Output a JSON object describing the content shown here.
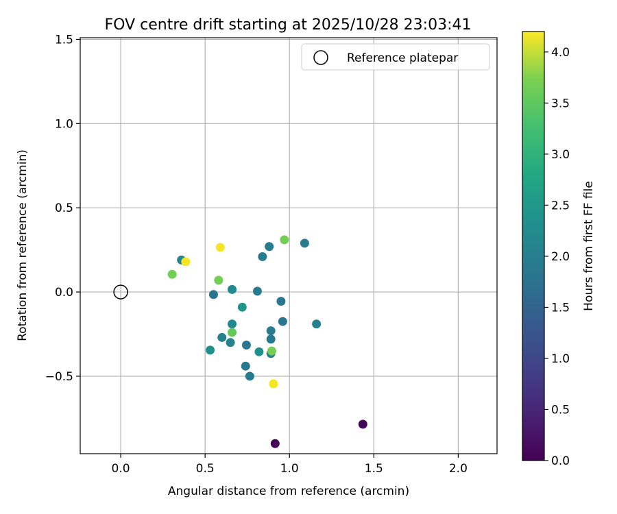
{
  "chart_data": {
    "type": "scatter",
    "title": "FOV centre drift starting at 2025/10/28 23:03:41",
    "xlabel": "Angular distance from reference (arcmin)",
    "ylabel": "Rotation from reference (arcmin)",
    "xlim": [
      -0.24,
      2.23
    ],
    "ylim": [
      -0.96,
      1.51
    ],
    "xticks": [
      0.0,
      0.5,
      1.0,
      1.5,
      2.0
    ],
    "xtick_labels": [
      "0.0",
      "0.5",
      "1.0",
      "1.5",
      "2.0"
    ],
    "yticks": [
      -0.5,
      0.0,
      0.5,
      1.0,
      1.5
    ],
    "ytick_labels": [
      "−0.5",
      "0.0",
      "0.5",
      "1.0",
      "1.5"
    ],
    "grid": true,
    "legend": {
      "position": "top-right",
      "entries": [
        "Reference platepar"
      ]
    },
    "reference": {
      "x": 0.0,
      "y": 0.0
    },
    "colorbar": {
      "label": "Hours from first FF file",
      "colormap": "viridis",
      "range": [
        0.0,
        4.2
      ],
      "ticks": [
        0.0,
        0.5,
        1.0,
        1.5,
        2.0,
        2.5,
        3.0,
        3.5,
        4.0
      ],
      "tick_labels": [
        "0.0",
        "0.5",
        "1.0",
        "1.5",
        "2.0",
        "2.5",
        "3.0",
        "3.5",
        "4.0"
      ]
    },
    "points": [
      {
        "x": 0.36,
        "y": 0.19,
        "hours": 1.9
      },
      {
        "x": 0.385,
        "y": 0.18,
        "hours": 4.15
      },
      {
        "x": 0.305,
        "y": 0.105,
        "hours": 3.3
      },
      {
        "x": 0.59,
        "y": 0.265,
        "hours": 4.15
      },
      {
        "x": 0.58,
        "y": 0.07,
        "hours": 3.3
      },
      {
        "x": 0.55,
        "y": -0.015,
        "hours": 1.65
      },
      {
        "x": 0.66,
        "y": 0.015,
        "hours": 2.0
      },
      {
        "x": 0.72,
        "y": -0.09,
        "hours": 2.2
      },
      {
        "x": 0.81,
        "y": 0.005,
        "hours": 1.75
      },
      {
        "x": 0.84,
        "y": 0.21,
        "hours": 1.75
      },
      {
        "x": 0.88,
        "y": 0.27,
        "hours": 1.75
      },
      {
        "x": 0.97,
        "y": 0.31,
        "hours": 3.3
      },
      {
        "x": 1.09,
        "y": 0.29,
        "hours": 1.75
      },
      {
        "x": 0.95,
        "y": -0.055,
        "hours": 1.65
      },
      {
        "x": 0.96,
        "y": -0.175,
        "hours": 1.65
      },
      {
        "x": 1.16,
        "y": -0.19,
        "hours": 1.8
      },
      {
        "x": 0.66,
        "y": -0.19,
        "hours": 2.0
      },
      {
        "x": 0.66,
        "y": -0.24,
        "hours": 3.2
      },
      {
        "x": 0.6,
        "y": -0.27,
        "hours": 1.8
      },
      {
        "x": 0.65,
        "y": -0.3,
        "hours": 1.85
      },
      {
        "x": 0.745,
        "y": -0.315,
        "hours": 1.7
      },
      {
        "x": 0.53,
        "y": -0.345,
        "hours": 2.1
      },
      {
        "x": 0.82,
        "y": -0.355,
        "hours": 2.1
      },
      {
        "x": 0.89,
        "y": -0.23,
        "hours": 1.75
      },
      {
        "x": 0.89,
        "y": -0.28,
        "hours": 1.7
      },
      {
        "x": 0.89,
        "y": -0.365,
        "hours": 1.8
      },
      {
        "x": 0.895,
        "y": -0.35,
        "hours": 3.3
      },
      {
        "x": 0.74,
        "y": -0.44,
        "hours": 1.7
      },
      {
        "x": 0.765,
        "y": -0.5,
        "hours": 1.7
      },
      {
        "x": 0.905,
        "y": -0.545,
        "hours": 4.15
      },
      {
        "x": 1.435,
        "y": -0.785,
        "hours": 0.05
      },
      {
        "x": 0.915,
        "y": -0.9,
        "hours": 0.05
      }
    ]
  }
}
